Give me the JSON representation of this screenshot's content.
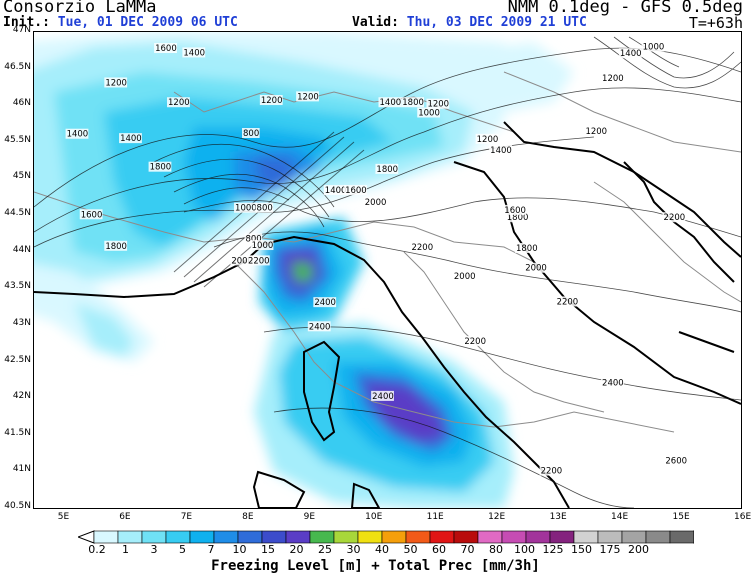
{
  "header": {
    "org": "Consorzio LaMMa",
    "model": "NMM 0.1deg - GFS 0.5deg",
    "init_label": "Init.:",
    "init_value": "Tue, 01 DEC 2009  06 UTC",
    "valid_label": "Valid:",
    "valid_value": "Thu, 03 DEC 2009  21 UTC",
    "lead": "T=+63h"
  },
  "axes": {
    "lat_ticks": [
      "47N",
      "46.5N",
      "46N",
      "45.5N",
      "45N",
      "44.5N",
      "44N",
      "43.5N",
      "43N",
      "42.5N",
      "42N",
      "41.5N",
      "41N",
      "40.5N"
    ],
    "lon_ticks": [
      "5E",
      "6E",
      "7E",
      "8E",
      "9E",
      "10E",
      "11E",
      "12E",
      "13E",
      "14E",
      "15E",
      "16E"
    ]
  },
  "contour_labels": [
    {
      "text": "1600",
      "lon": 6.47,
      "lat": 46.74
    },
    {
      "text": "1400",
      "lon": 6.93,
      "lat": 46.68
    },
    {
      "text": "1200",
      "lon": 5.66,
      "lat": 46.27
    },
    {
      "text": "1200",
      "lon": 8.19,
      "lat": 46.03
    },
    {
      "text": "1200",
      "lon": 8.78,
      "lat": 46.08
    },
    {
      "text": "1200",
      "lon": 10.9,
      "lat": 45.98
    },
    {
      "text": "1200",
      "lon": 13.74,
      "lat": 46.33
    },
    {
      "text": "1200",
      "lon": 13.47,
      "lat": 45.61
    },
    {
      "text": "1200",
      "lon": 11.7,
      "lat": 45.5
    },
    {
      "text": "1000",
      "lon": 14.4,
      "lat": 46.76
    },
    {
      "text": "1000",
      "lon": 10.75,
      "lat": 45.86
    },
    {
      "text": "1400",
      "lon": 5.03,
      "lat": 45.57
    },
    {
      "text": "1400",
      "lon": 5.9,
      "lat": 45.51
    },
    {
      "text": "1400",
      "lon": 10.12,
      "lat": 46.0
    },
    {
      "text": "1800",
      "lon": 10.49,
      "lat": 46.0
    },
    {
      "text": "1400",
      "lon": 11.92,
      "lat": 45.35
    },
    {
      "text": "1400",
      "lon": 14.03,
      "lat": 46.67
    },
    {
      "text": "1200",
      "lon": 6.68,
      "lat": 46.0
    },
    {
      "text": "1800",
      "lon": 6.38,
      "lat": 45.12
    },
    {
      "text": "800",
      "lon": 7.9,
      "lat": 45.58
    },
    {
      "text": "1600",
      "lon": 5.26,
      "lat": 44.47
    },
    {
      "text": "1800",
      "lon": 5.66,
      "lat": 44.04
    },
    {
      "text": "1000",
      "lon": 7.77,
      "lat": 44.56
    },
    {
      "text": "800",
      "lon": 8.12,
      "lat": 44.56
    },
    {
      "text": "1400",
      "lon": 9.23,
      "lat": 44.8
    },
    {
      "text": "1600",
      "lon": 9.56,
      "lat": 44.8
    },
    {
      "text": "1800",
      "lon": 10.07,
      "lat": 45.09
    },
    {
      "text": "2000",
      "lon": 9.88,
      "lat": 44.64
    },
    {
      "text": "1800",
      "lon": 12.19,
      "lat": 44.43
    },
    {
      "text": "1600",
      "lon": 12.15,
      "lat": 44.53
    },
    {
      "text": "800",
      "lon": 7.94,
      "lat": 44.14
    },
    {
      "text": "1000",
      "lon": 8.04,
      "lat": 44.05
    },
    {
      "text": "2000",
      "lon": 7.71,
      "lat": 43.84
    },
    {
      "text": "2200",
      "lon": 7.98,
      "lat": 43.84
    },
    {
      "text": "2200",
      "lon": 10.64,
      "lat": 44.02
    },
    {
      "text": "1800",
      "lon": 12.34,
      "lat": 44.01
    },
    {
      "text": "2000",
      "lon": 12.49,
      "lat": 43.74
    },
    {
      "text": "2000",
      "lon": 11.33,
      "lat": 43.63
    },
    {
      "text": "2200",
      "lon": 13.0,
      "lat": 43.28
    },
    {
      "text": "2400",
      "lon": 9.06,
      "lat": 43.27
    },
    {
      "text": "2400",
      "lon": 8.97,
      "lat": 42.94
    },
    {
      "text": "2200",
      "lon": 11.5,
      "lat": 42.74
    },
    {
      "text": "2400",
      "lon": 10.0,
      "lat": 41.99
    },
    {
      "text": "2400",
      "lon": 13.74,
      "lat": 42.17
    },
    {
      "text": "2600",
      "lon": 14.77,
      "lat": 41.11
    },
    {
      "text": "2200",
      "lon": 12.74,
      "lat": 40.97
    },
    {
      "text": "2200",
      "lon": 14.74,
      "lat": 44.43
    }
  ],
  "legend": {
    "title": "Freezing Level [m] + Total Prec [mm/3h]",
    "levels": [
      "0.2",
      "1",
      "3",
      "5",
      "7",
      "10",
      "15",
      "20",
      "25",
      "30",
      "40",
      "50",
      "60",
      "70",
      "80",
      "100",
      "125",
      "150",
      "175",
      "200"
    ],
    "colors": [
      "#d9f8ff",
      "#a6eefb",
      "#6fe1f5",
      "#37ccf2",
      "#0fb1ef",
      "#1f8de8",
      "#2f6cd9",
      "#3c4ccb",
      "#5a3dc6",
      "#47b84e",
      "#a8d73a",
      "#f0e012",
      "#f59f0b",
      "#f25a18",
      "#e01515",
      "#b90c0c",
      "#e06ac4",
      "#c64cb3",
      "#a2349b",
      "#84237e",
      "#d2d2d2",
      "#bcbcbc",
      "#a4a4a4",
      "#8a8a8a",
      "#6a6a6a"
    ]
  }
}
